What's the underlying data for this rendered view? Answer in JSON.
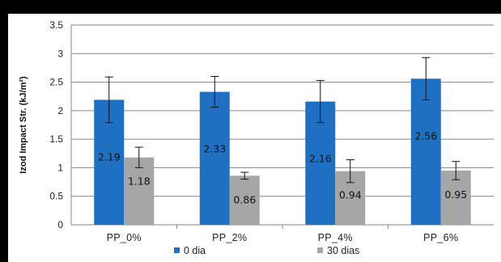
{
  "chart_data": {
    "type": "bar",
    "title": "",
    "xlabel": "",
    "ylabel": "Izod Impact Str. (kJ/m²)",
    "ylim": [
      0,
      3.5
    ],
    "yticks": [
      "0",
      "0.5",
      "1",
      "1.5",
      "2",
      "2.5",
      "3",
      "3.5"
    ],
    "categories": [
      "PP_0%",
      "PP_2%",
      "PP_4%",
      "PP_6%"
    ],
    "series": [
      {
        "name": "0 dia",
        "color": "#1f6fc2",
        "values": [
          2.19,
          2.33,
          2.16,
          2.56
        ],
        "errors": [
          0.4,
          0.27,
          0.37,
          0.37
        ],
        "labels": [
          "2.19",
          "2.33",
          "2.16",
          "2.56"
        ]
      },
      {
        "name": "30 dias",
        "color": "#a6a6a6",
        "values": [
          1.18,
          0.86,
          0.94,
          0.95
        ],
        "errors": [
          0.18,
          0.06,
          0.2,
          0.16
        ],
        "labels": [
          "1.18",
          "0.86",
          "0.94",
          "0.95"
        ]
      }
    ],
    "grid": true,
    "legend": "bottom"
  }
}
